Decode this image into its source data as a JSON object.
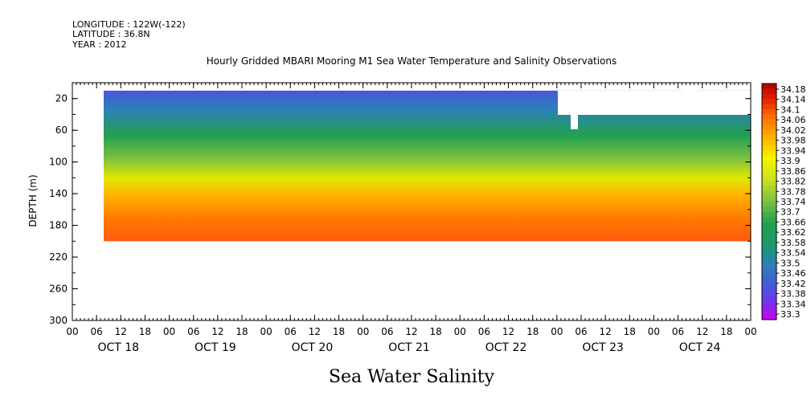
{
  "header": {
    "longitude": "LONGITUDE : 122W(-122)",
    "latitude": "LATITUDE : 36.8N",
    "year": "YEAR : 2012"
  },
  "chart_data": {
    "type": "heatmap",
    "title": "Hourly Gridded MBARI Mooring M1 Sea Water Temperature and Salinity Observations",
    "ylabel": "DEPTH (m)",
    "bottom_title": "Sea Water Salinity",
    "ylim": [
      300,
      0
    ],
    "y_ticks": [
      "20",
      "60",
      "100",
      "140",
      "180",
      "220",
      "260",
      "300"
    ],
    "x_hour_ticks": [
      "00",
      "06",
      "12",
      "18",
      "00",
      "06",
      "12",
      "18",
      "00",
      "06",
      "12",
      "18",
      "00",
      "06",
      "12",
      "18",
      "00",
      "06",
      "12",
      "18",
      "00",
      "06",
      "12",
      "18",
      "00",
      "06",
      "12",
      "18",
      "00"
    ],
    "x_day_labels": [
      "OCT 18",
      "OCT 19",
      "OCT 20",
      "OCT 21",
      "OCT 22",
      "OCT 23",
      "OCT 24"
    ],
    "colorbar_levels": [
      "34.18",
      "34.14",
      "34.1",
      "34.06",
      "34.02",
      "33.98",
      "33.94",
      "33.9",
      "33.86",
      "33.82",
      "33.78",
      "33.74",
      "33.7",
      "33.66",
      "33.62",
      "33.58",
      "33.54",
      "33.5",
      "33.46",
      "33.42",
      "33.38",
      "33.34",
      "33.3"
    ],
    "colors": {
      "high": "#cc0000",
      "mid_high": "#ff6a00",
      "mid": "#e0e800",
      "mid_low": "#22a050",
      "low": "#4a55dd",
      "min": "#cc00ee"
    },
    "data_extent": {
      "depth_min_m": 10,
      "depth_max_m": 200
    },
    "profile_mean_by_depth": [
      {
        "depth": 10,
        "salinity": 33.44
      },
      {
        "depth": 30,
        "salinity": 33.52
      },
      {
        "depth": 60,
        "salinity": 33.6
      },
      {
        "depth": 90,
        "salinity": 33.72
      },
      {
        "depth": 110,
        "salinity": 33.82
      },
      {
        "depth": 130,
        "salinity": 33.92
      },
      {
        "depth": 145,
        "salinity": 34.0
      },
      {
        "depth": 170,
        "salinity": 34.05
      },
      {
        "depth": 200,
        "salinity": 34.07
      }
    ]
  }
}
